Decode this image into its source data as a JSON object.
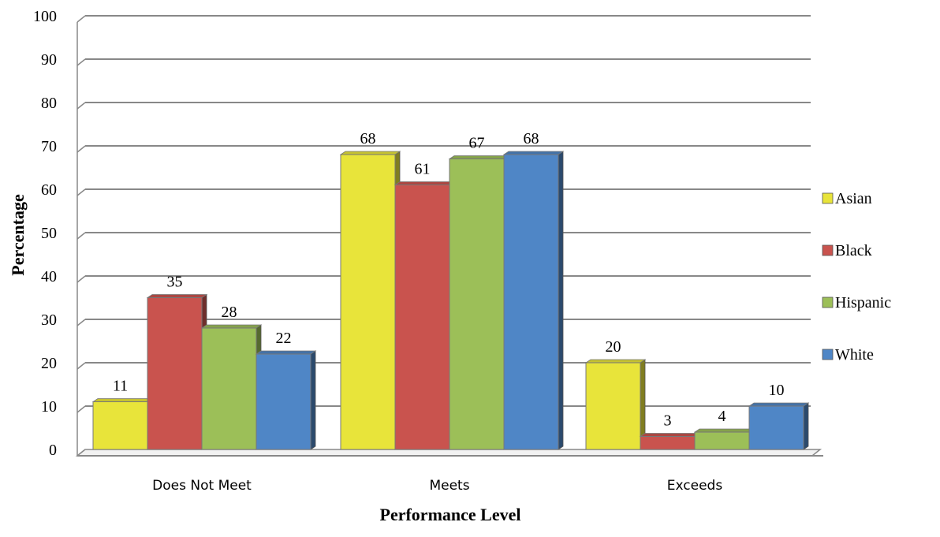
{
  "chart_data": {
    "type": "bar",
    "xlabel": "Performance Level",
    "ylabel": "Percentage",
    "ylim": [
      0,
      100
    ],
    "yticks": [
      0,
      10,
      20,
      30,
      40,
      50,
      60,
      70,
      80,
      90,
      100
    ],
    "grid": true,
    "legend_position": "right",
    "categories": [
      "Does Not Meet",
      "Meets",
      "Exceeds"
    ],
    "series": [
      {
        "name": "Asian",
        "color": "#e8e43a",
        "values": [
          11,
          68,
          20
        ]
      },
      {
        "name": "Black",
        "color": "#c9534e",
        "values": [
          35,
          61,
          3
        ]
      },
      {
        "name": "Hispanic",
        "color": "#9cbf58",
        "values": [
          28,
          67,
          4
        ]
      },
      {
        "name": "White",
        "color": "#4f86c6",
        "values": [
          22,
          68,
          10
        ]
      }
    ]
  }
}
